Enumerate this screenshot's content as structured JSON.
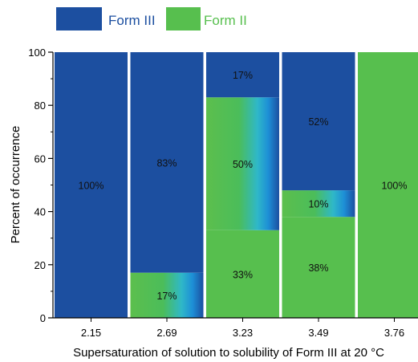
{
  "chart_data": {
    "type": "bar",
    "stacked": true,
    "title": "",
    "xlabel": "Supersaturation of solution to solubility of Form III at 20 °C",
    "ylabel": "Percent of occurrence",
    "ylim": [
      0,
      100
    ],
    "yticks": [
      0,
      20,
      40,
      60,
      80,
      100
    ],
    "grid": false,
    "legend_position": "top",
    "categories": [
      "2.15",
      "2.69",
      "3.23",
      "3.49",
      "3.76"
    ],
    "legend": [
      {
        "name": "Form III",
        "color": "#1c4fa0"
      },
      {
        "name": "Form II",
        "color": "#57bf4e"
      }
    ],
    "stacks": [
      [
        {
          "form": "Form III",
          "value": 100,
          "label": "100%"
        }
      ],
      [
        {
          "form": "Form II",
          "value": 17,
          "label": "17%",
          "mixed": true
        },
        {
          "form": "Form III",
          "value": 83,
          "label": "83%"
        }
      ],
      [
        {
          "form": "Form II",
          "value": 33,
          "label": "33%"
        },
        {
          "form": "Mixed",
          "value": 50,
          "label": "50%",
          "mixed": true
        },
        {
          "form": "Form III",
          "value": 17,
          "label": "17%"
        }
      ],
      [
        {
          "form": "Form II",
          "value": 38,
          "label": "38%"
        },
        {
          "form": "Mixed",
          "value": 10,
          "label": "10%",
          "mixed": true
        },
        {
          "form": "Form III",
          "value": 52,
          "label": "52%"
        }
      ],
      [
        {
          "form": "Form II",
          "value": 100,
          "label": "100%"
        }
      ]
    ]
  }
}
